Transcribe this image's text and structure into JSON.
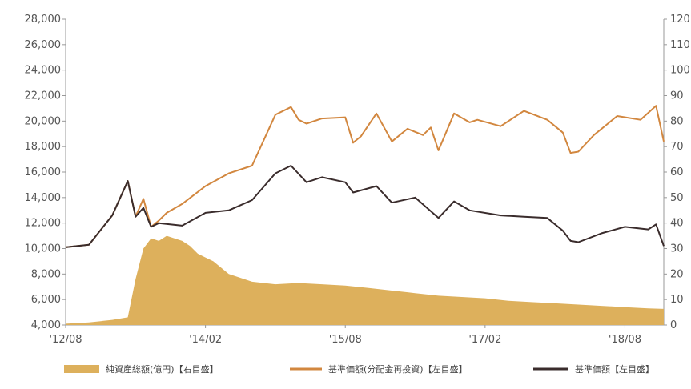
{
  "colors": {
    "net_assets": "#DDB05C",
    "nav_reinvested": "#D2873F",
    "nav": "#3A2C2C",
    "axis": "#999999",
    "text": "#555555"
  },
  "chart_data": {
    "type": "line",
    "x_tick_labels": [
      "'12/08",
      "'14/02",
      "'15/08",
      "'17/02",
      "'18/08"
    ],
    "x_tick_years": [
      2012.583,
      2014.083,
      2015.583,
      2017.083,
      2018.583
    ],
    "x_range": [
      2012.583,
      2019.0
    ],
    "y_left": {
      "range": [
        4000,
        28000
      ],
      "ticks": [
        4000,
        6000,
        8000,
        10000,
        12000,
        14000,
        16000,
        18000,
        20000,
        22000,
        24000,
        26000,
        28000
      ],
      "tick_labels": [
        "4,000",
        "6,000",
        "8,000",
        "10,000",
        "12,000",
        "14,000",
        "16,000",
        "18,000",
        "20,000",
        "22,000",
        "24,000",
        "26,000",
        "28,000"
      ]
    },
    "y_right": {
      "range": [
        0,
        120
      ],
      "ticks": [
        0,
        10,
        20,
        30,
        40,
        50,
        60,
        70,
        80,
        90,
        100,
        110,
        120
      ],
      "tick_labels": [
        "0",
        "10",
        "20",
        "30",
        "40",
        "50",
        "60",
        "70",
        "80",
        "90",
        "100",
        "110",
        "120"
      ]
    },
    "series": [
      {
        "name": "純資産総額(億円)【右目盛】",
        "kind": "area",
        "axis": "right",
        "x": [
          2012.583,
          2012.833,
          2013.083,
          2013.25,
          2013.333,
          2013.417,
          2013.5,
          2013.583,
          2013.667,
          2013.75,
          2013.833,
          2013.917,
          2014.0,
          2014.167,
          2014.333,
          2014.583,
          2014.833,
          2015.083,
          2015.333,
          2015.583,
          2015.833,
          2016.083,
          2016.333,
          2016.583,
          2016.833,
          2017.083,
          2017.333,
          2017.583,
          2017.833,
          2018.083,
          2018.333,
          2018.583,
          2018.833,
          2019.0
        ],
        "y": [
          0.5,
          1,
          2,
          3,
          18,
          30,
          34,
          33,
          35,
          34,
          33,
          31,
          28,
          25,
          20,
          17,
          16,
          16.5,
          16,
          15.5,
          14.5,
          13.5,
          12.5,
          11.5,
          11,
          10.5,
          9.5,
          9,
          8.5,
          8,
          7.5,
          7,
          6.5,
          6.3
        ]
      },
      {
        "name": "基準価額(分配金再投資)【左目盛】",
        "kind": "line",
        "axis": "left",
        "x": [
          2012.583,
          2012.833,
          2013.083,
          2013.25,
          2013.333,
          2013.417,
          2013.5,
          2013.583,
          2013.667,
          2013.833,
          2014.083,
          2014.333,
          2014.583,
          2014.833,
          2015.0,
          2015.083,
          2015.167,
          2015.333,
          2015.583,
          2015.667,
          2015.75,
          2015.917,
          2016.083,
          2016.25,
          2016.417,
          2016.5,
          2016.583,
          2016.75,
          2016.917,
          2017.0,
          2017.25,
          2017.5,
          2017.75,
          2017.917,
          2018.0,
          2018.083,
          2018.25,
          2018.5,
          2018.75,
          2018.917,
          2019.0
        ],
        "y": [
          10100,
          10300,
          12600,
          15300,
          12500,
          13900,
          11700,
          12200,
          12800,
          13500,
          14900,
          15900,
          16500,
          20500,
          21100,
          20100,
          19800,
          20200,
          20300,
          18300,
          18800,
          20600,
          18400,
          19400,
          18900,
          19500,
          17700,
          20600,
          19900,
          20100,
          19600,
          20800,
          20100,
          19100,
          17500,
          17600,
          18900,
          20400,
          20100,
          21200,
          18400
        ]
      },
      {
        "name": "基準価額【左目盛】",
        "kind": "line",
        "axis": "left",
        "x": [
          2012.583,
          2012.833,
          2013.083,
          2013.25,
          2013.333,
          2013.417,
          2013.5,
          2013.583,
          2013.833,
          2014.083,
          2014.333,
          2014.583,
          2014.833,
          2015.0,
          2015.167,
          2015.333,
          2015.583,
          2015.667,
          2015.917,
          2016.083,
          2016.333,
          2016.583,
          2016.75,
          2016.917,
          2017.25,
          2017.5,
          2017.75,
          2017.917,
          2018.0,
          2018.083,
          2018.333,
          2018.583,
          2018.833,
          2018.917,
          2019.0
        ],
        "y": [
          10100,
          10300,
          12600,
          15300,
          12500,
          13200,
          11700,
          12000,
          11800,
          12800,
          13000,
          13800,
          15900,
          16500,
          15200,
          15600,
          15200,
          14400,
          14900,
          13600,
          14000,
          12400,
          13700,
          13000,
          12600,
          12500,
          12400,
          11400,
          10600,
          10500,
          11200,
          11700,
          11500,
          11900,
          10200
        ]
      }
    ],
    "legend": {
      "placement": "bottom"
    }
  }
}
